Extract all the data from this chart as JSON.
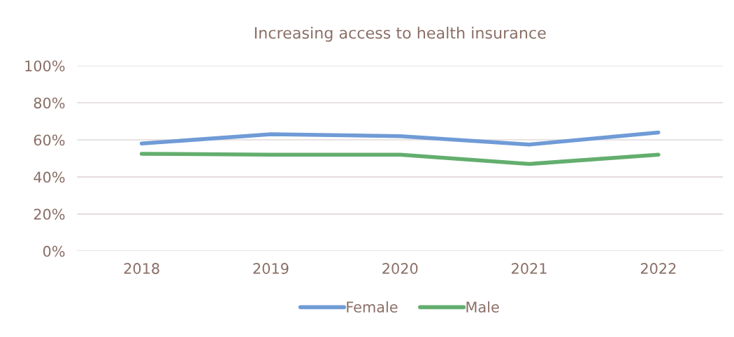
{
  "chart_data": {
    "type": "line",
    "title": "Increasing access to health insurance",
    "categories": [
      "2018",
      "2019",
      "2020",
      "2021",
      "2022"
    ],
    "series": [
      {
        "name": "Female",
        "color": "#6f9bd6",
        "values": [
          58,
          63,
          62,
          57.5,
          64
        ]
      },
      {
        "name": "Male",
        "color": "#63ae6e",
        "values": [
          52.5,
          52,
          52,
          47,
          52
        ]
      }
    ],
    "ylim": [
      0,
      100
    ],
    "yticks": [
      {
        "value": 0,
        "label": "0%"
      },
      {
        "value": 20,
        "label": "20%"
      },
      {
        "value": 40,
        "label": "40%"
      },
      {
        "value": 60,
        "label": "60%"
      },
      {
        "value": 80,
        "label": "80%"
      },
      {
        "value": 100,
        "label": "100%"
      }
    ],
    "grid": "y",
    "legend": "bottom",
    "marker": "none",
    "line_style": "solid"
  }
}
